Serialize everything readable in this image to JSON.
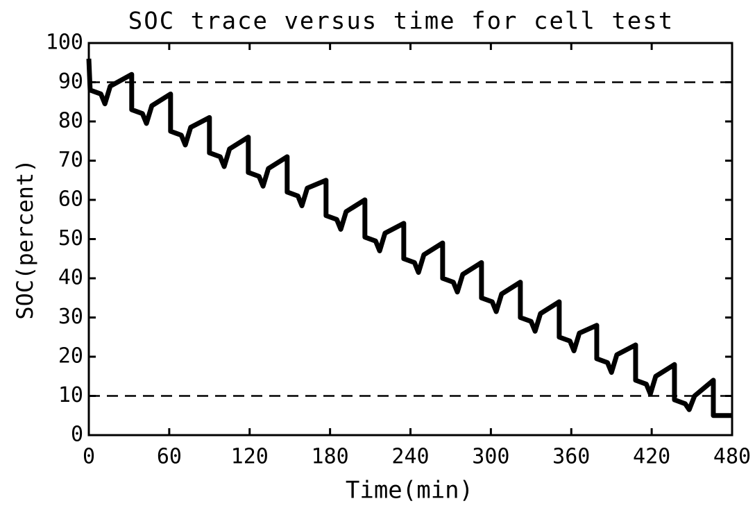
{
  "chart_data": {
    "type": "line",
    "title": "SOC trace versus time for cell test",
    "xlabel": "Time(min)",
    "ylabel": "SOC(percent)",
    "x": [
      0,
      1,
      9,
      12,
      16,
      32,
      32,
      40,
      43,
      47,
      61,
      61,
      69,
      72,
      76,
      90,
      90,
      98,
      101,
      105,
      119,
      119,
      127,
      130,
      134,
      148,
      148,
      156,
      159,
      163,
      177,
      177,
      185,
      188,
      192,
      206,
      206,
      214,
      217,
      221,
      235,
      235,
      243,
      246,
      250,
      264,
      264,
      272,
      275,
      279,
      293,
      293,
      301,
      304,
      308,
      322,
      322,
      330,
      333,
      337,
      351,
      351,
      359,
      362,
      366,
      379,
      379,
      387,
      390,
      394,
      408,
      408,
      416,
      419,
      423,
      437,
      437,
      445,
      448,
      452,
      466,
      466,
      480
    ],
    "series": [
      {
        "name": "SOC",
        "color": "#000000",
        "values": [
          96,
          88,
          87,
          84.5,
          89,
          92,
          83,
          82,
          79.5,
          84,
          87,
          77.5,
          76.5,
          74,
          78.5,
          81,
          72,
          71,
          68.5,
          73,
          76,
          67,
          66,
          63.5,
          68,
          71,
          62,
          61,
          58.5,
          63,
          65,
          56,
          55,
          52.5,
          57,
          60,
          50.5,
          49.5,
          47,
          51.5,
          54,
          45,
          44,
          41.5,
          46,
          49,
          40,
          39,
          36.5,
          41,
          44,
          35,
          34,
          31.5,
          36,
          39,
          30,
          29,
          26.5,
          31,
          34,
          25,
          24,
          21.5,
          26,
          28,
          19.5,
          18.5,
          16,
          20.5,
          23,
          14,
          13,
          10.5,
          15,
          18,
          9,
          8,
          6.5,
          10,
          14,
          5,
          5
        ]
      }
    ],
    "hlines": [
      90,
      10
    ],
    "xlim": [
      0,
      480
    ],
    "xticks": [
      0,
      60,
      120,
      180,
      240,
      300,
      360,
      420,
      480
    ],
    "ylim": [
      0,
      100
    ],
    "yticks": [
      0,
      10,
      20,
      30,
      40,
      50,
      60,
      70,
      80,
      90,
      100
    ]
  }
}
